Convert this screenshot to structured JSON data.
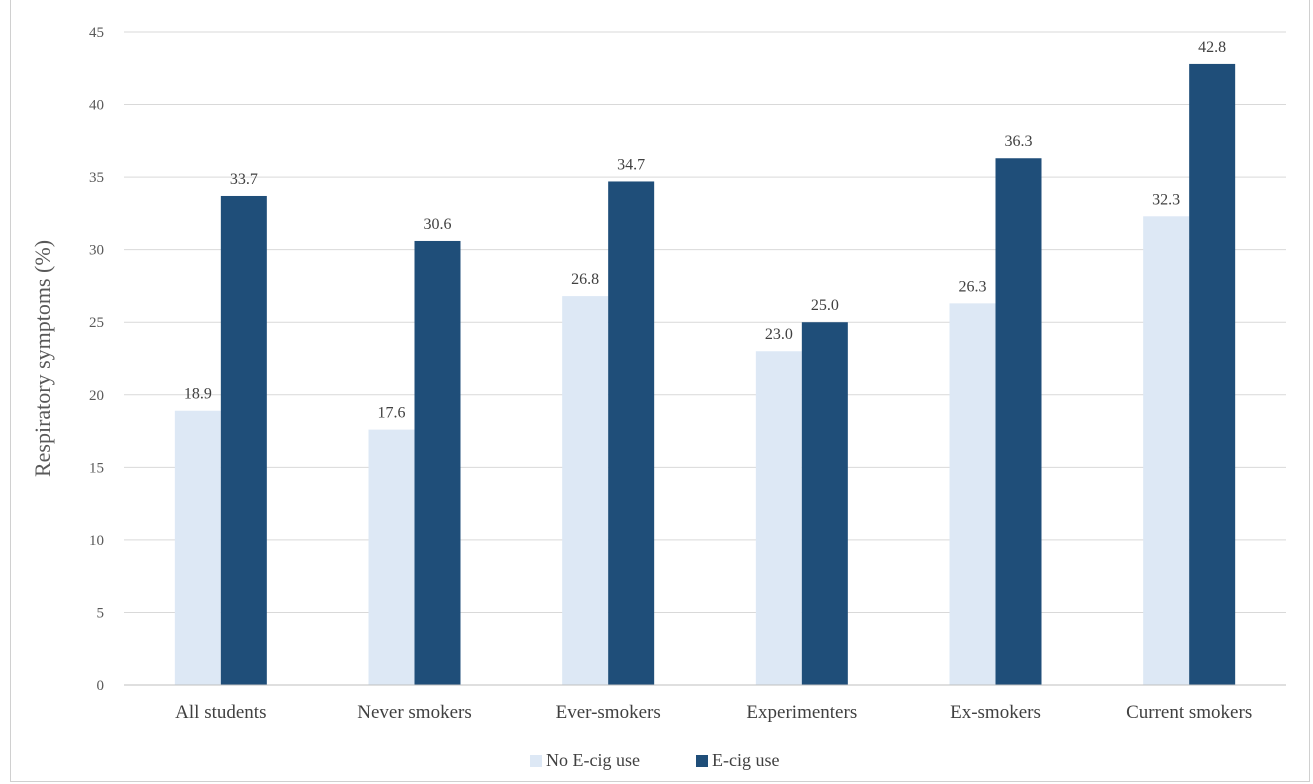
{
  "chart_data": {
    "type": "bar",
    "categories": [
      "All students",
      "Never smokers",
      "Ever-smokers",
      "Experimenters",
      "Ex-smokers",
      "Current smokers"
    ],
    "series": [
      {
        "name": "No E-cig use",
        "values": [
          18.9,
          17.6,
          26.8,
          23.0,
          26.3,
          32.3
        ],
        "color": "#dde8f5"
      },
      {
        "name": "E-cig use",
        "values": [
          33.7,
          30.6,
          34.7,
          25.0,
          36.3,
          42.8
        ],
        "color": "#1f4e79"
      }
    ],
    "value_labels": [
      [
        "18.9",
        "17.6",
        "26.8",
        "23.0",
        "26.3",
        "32.3"
      ],
      [
        "33.7",
        "30.6",
        "34.7",
        "25.0",
        "36.3",
        "42.8"
      ]
    ],
    "title": "",
    "xlabel": "",
    "ylabel": "Respiratory symptoms (%)",
    "ylim": [
      0,
      45
    ],
    "yticks": [
      "0",
      "5",
      "10",
      "15",
      "20",
      "25",
      "30",
      "35",
      "40",
      "45"
    ],
    "grid": true,
    "legend_position": "bottom"
  }
}
